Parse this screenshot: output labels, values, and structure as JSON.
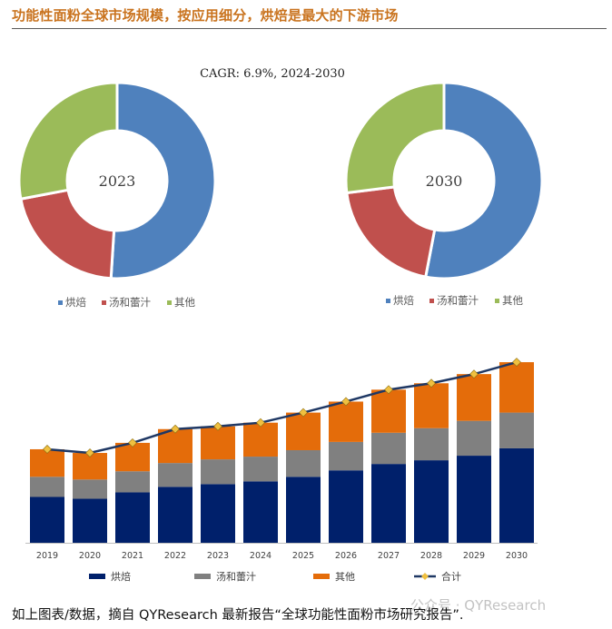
{
  "header": {
    "title": "功能性面粉全球市场规模，按应用细分，烘焙是最大的下游市场"
  },
  "colors": {
    "bakery": "#4f81bd",
    "soup": "#c0504d",
    "other": "#9bbb59",
    "bar_bakery": "#00206b",
    "bar_soup": "#808080",
    "bar_other": "#e46c0a",
    "total_line": "#1f3864",
    "total_marker": "#f0c040",
    "title": "#c9731e"
  },
  "chart_data": [
    {
      "type": "pie",
      "variant": "donut",
      "center_label": "2023",
      "cagr_text": "CAGR:   6.9%, 2024-2030",
      "slices": [
        {
          "name": "烘焙",
          "value": 51
        },
        {
          "name": "汤和蕾汁",
          "value": 21
        },
        {
          "name": "其他",
          "value": 28
        }
      ],
      "legend": [
        "烘焙",
        "汤和蕾汁",
        "其他"
      ],
      "legend_position": "bottom"
    },
    {
      "type": "pie",
      "variant": "donut",
      "center_label": "2030",
      "slices": [
        {
          "name": "烘焙",
          "value": 53
        },
        {
          "name": "汤和蕾汁",
          "value": 20
        },
        {
          "name": "其他",
          "value": 27
        }
      ],
      "legend": [
        "烘焙",
        "汤和蕾汁",
        "其他"
      ],
      "legend_position": "bottom"
    },
    {
      "type": "bar",
      "stacked": true,
      "categories": [
        "2019",
        "2020",
        "2021",
        "2022",
        "2023",
        "2024",
        "2025",
        "2026",
        "2027",
        "2028",
        "2029",
        "2030"
      ],
      "series": [
        {
          "name": "烘焙",
          "values": [
            5.0,
            4.8,
            5.5,
            6.1,
            6.4,
            6.7,
            7.2,
            7.9,
            8.6,
            9.0,
            9.5,
            10.3
          ]
        },
        {
          "name": "汤和蕾汁",
          "values": [
            2.2,
            2.1,
            2.3,
            2.6,
            2.7,
            2.7,
            2.9,
            3.1,
            3.4,
            3.5,
            3.8,
            3.9
          ]
        },
        {
          "name": "其他",
          "values": [
            3.0,
            2.9,
            3.1,
            3.7,
            3.6,
            3.7,
            4.1,
            4.4,
            4.7,
            4.9,
            5.1,
            5.5
          ]
        }
      ],
      "line": {
        "name": "合计",
        "values": [
          10.2,
          9.8,
          10.9,
          12.4,
          12.7,
          13.1,
          14.2,
          15.4,
          16.7,
          17.4,
          18.4,
          19.7
        ]
      },
      "ylim": [
        0,
        20
      ],
      "legend": [
        "烘焙",
        "汤和蕾汁",
        "其他",
        "合计"
      ],
      "legend_position": "bottom"
    }
  ],
  "footer": {
    "caption": "如上图表/数据，摘自 QYResearch 最新报告“全球功能性面粉市场研究报告”.",
    "watermark": "公众号 · QYResearch"
  }
}
